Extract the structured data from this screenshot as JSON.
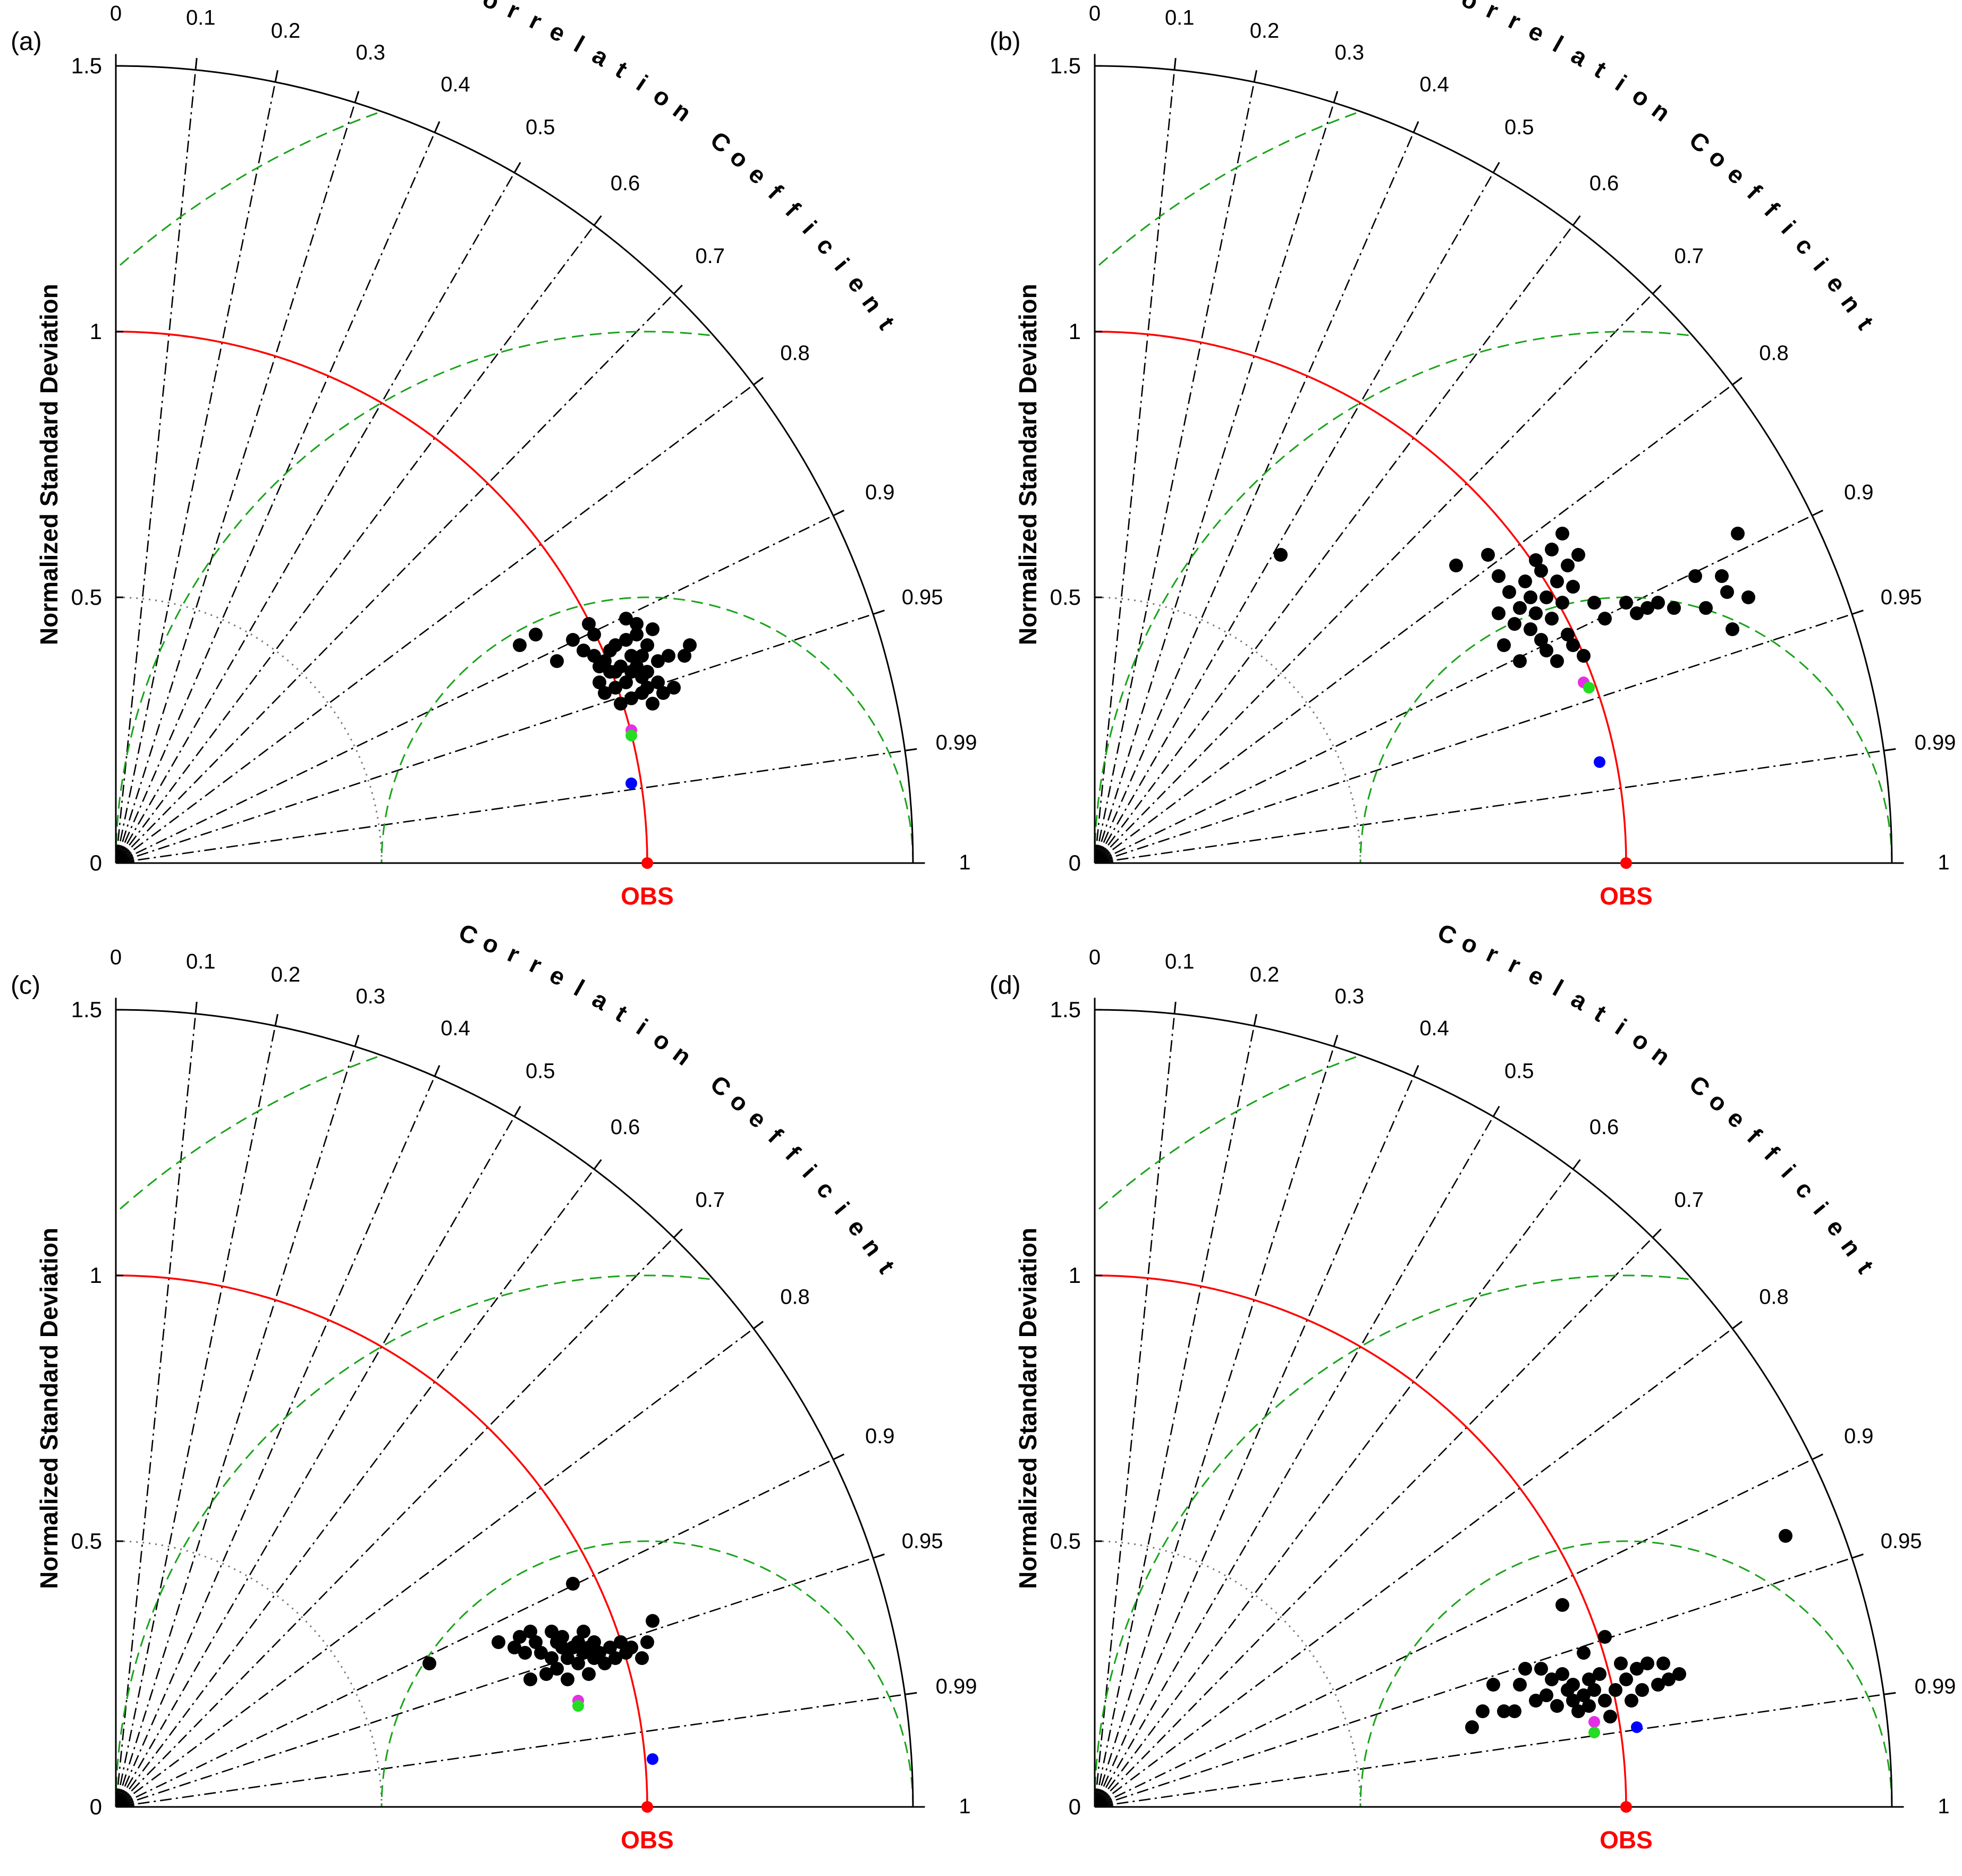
{
  "figure": {
    "colors": {
      "ref_arc": "#ff0000",
      "rms_arc": "#1aa31a",
      "std_dotted": "#777777",
      "corr_line": "#000000",
      "model_point": "#000000",
      "mme_magenta": "#e62ee6",
      "mme_green": "#22dd22",
      "mme_blue": "#0000ff",
      "obs_point": "#ff0000"
    },
    "common": {
      "ylabel": "Normalized Standard Deviation",
      "corr_title": "Correlation Coefficient",
      "obs_label": "OBS",
      "std_ticks": [
        "0",
        "0.5",
        "1",
        "1.5"
      ],
      "corr_ticks": [
        "0",
        "0.1",
        "0.2",
        "0.3",
        "0.4",
        "0.5",
        "0.6",
        "0.7",
        "0.8",
        "0.9",
        "0.95",
        "0.99",
        "1"
      ]
    }
  },
  "chart_data": [
    {
      "panel": "(a)",
      "type": "scatter",
      "subtype": "taylor-diagram",
      "xlabel": "",
      "ylabel": "Normalized Standard Deviation",
      "title": "Correlation Coefficient",
      "std_range": [
        0,
        1.5
      ],
      "corr_range": [
        0,
        1
      ],
      "ref_std": 1.0,
      "rms_contours": [
        0.5,
        1.0,
        1.5
      ],
      "models": [
        {
          "x": 0.76,
          "y": 0.41
        },
        {
          "x": 0.79,
          "y": 0.43
        },
        {
          "x": 0.83,
          "y": 0.38
        },
        {
          "x": 0.86,
          "y": 0.42
        },
        {
          "x": 0.88,
          "y": 0.4
        },
        {
          "x": 0.89,
          "y": 0.45
        },
        {
          "x": 0.9,
          "y": 0.43
        },
        {
          "x": 0.9,
          "y": 0.39
        },
        {
          "x": 0.91,
          "y": 0.37
        },
        {
          "x": 0.91,
          "y": 0.34
        },
        {
          "x": 0.92,
          "y": 0.32
        },
        {
          "x": 0.92,
          "y": 0.38
        },
        {
          "x": 0.93,
          "y": 0.4
        },
        {
          "x": 0.93,
          "y": 0.36
        },
        {
          "x": 0.94,
          "y": 0.33
        },
        {
          "x": 0.94,
          "y": 0.41
        },
        {
          "x": 0.95,
          "y": 0.37
        },
        {
          "x": 0.95,
          "y": 0.3
        },
        {
          "x": 0.96,
          "y": 0.46
        },
        {
          "x": 0.96,
          "y": 0.42
        },
        {
          "x": 0.96,
          "y": 0.34
        },
        {
          "x": 0.97,
          "y": 0.39
        },
        {
          "x": 0.97,
          "y": 0.36
        },
        {
          "x": 0.97,
          "y": 0.31
        },
        {
          "x": 0.98,
          "y": 0.45
        },
        {
          "x": 0.98,
          "y": 0.43
        },
        {
          "x": 0.98,
          "y": 0.37
        },
        {
          "x": 0.99,
          "y": 0.35
        },
        {
          "x": 0.99,
          "y": 0.32
        },
        {
          "x": 1.0,
          "y": 0.41
        },
        {
          "x": 1.0,
          "y": 0.36
        },
        {
          "x": 1.0,
          "y": 0.33
        },
        {
          "x": 1.01,
          "y": 0.3
        },
        {
          "x": 1.01,
          "y": 0.44
        },
        {
          "x": 1.02,
          "y": 0.38
        },
        {
          "x": 1.02,
          "y": 0.34
        },
        {
          "x": 1.03,
          "y": 0.32
        },
        {
          "x": 1.04,
          "y": 0.39
        },
        {
          "x": 1.05,
          "y": 0.33
        },
        {
          "x": 1.07,
          "y": 0.39
        },
        {
          "x": 1.08,
          "y": 0.41
        },
        {
          "x": 0.94,
          "y": 0.36
        },
        {
          "x": 0.99,
          "y": 0.39
        }
      ],
      "ensemble": [
        {
          "name": "magenta",
          "x": 0.97,
          "y": 0.25
        },
        {
          "name": "green",
          "x": 0.97,
          "y": 0.24
        },
        {
          "name": "blue",
          "x": 0.97,
          "y": 0.15
        }
      ],
      "obs": {
        "x": 1.0,
        "y": 0.0
      }
    },
    {
      "panel": "(b)",
      "type": "scatter",
      "subtype": "taylor-diagram",
      "xlabel": "",
      "ylabel": "Normalized Standard Deviation",
      "title": "Correlation Coefficient",
      "std_range": [
        0,
        1.5
      ],
      "corr_range": [
        0,
        1
      ],
      "ref_std": 1.0,
      "rms_contours": [
        0.5,
        1.0,
        1.5
      ],
      "models": [
        {
          "x": 0.35,
          "y": 0.58
        },
        {
          "x": 0.68,
          "y": 0.56
        },
        {
          "x": 0.74,
          "y": 0.58
        },
        {
          "x": 0.76,
          "y": 0.54
        },
        {
          "x": 0.76,
          "y": 0.47
        },
        {
          "x": 0.77,
          "y": 0.41
        },
        {
          "x": 0.78,
          "y": 0.51
        },
        {
          "x": 0.79,
          "y": 0.45
        },
        {
          "x": 0.8,
          "y": 0.48
        },
        {
          "x": 0.8,
          "y": 0.38
        },
        {
          "x": 0.81,
          "y": 0.53
        },
        {
          "x": 0.82,
          "y": 0.5
        },
        {
          "x": 0.82,
          "y": 0.44
        },
        {
          "x": 0.83,
          "y": 0.57
        },
        {
          "x": 0.83,
          "y": 0.47
        },
        {
          "x": 0.84,
          "y": 0.42
        },
        {
          "x": 0.84,
          "y": 0.55
        },
        {
          "x": 0.85,
          "y": 0.5
        },
        {
          "x": 0.85,
          "y": 0.4
        },
        {
          "x": 0.86,
          "y": 0.46
        },
        {
          "x": 0.86,
          "y": 0.59
        },
        {
          "x": 0.87,
          "y": 0.53
        },
        {
          "x": 0.87,
          "y": 0.38
        },
        {
          "x": 0.88,
          "y": 0.62
        },
        {
          "x": 0.88,
          "y": 0.49
        },
        {
          "x": 0.89,
          "y": 0.56
        },
        {
          "x": 0.89,
          "y": 0.43
        },
        {
          "x": 0.9,
          "y": 0.41
        },
        {
          "x": 0.9,
          "y": 0.52
        },
        {
          "x": 0.91,
          "y": 0.58
        },
        {
          "x": 0.92,
          "y": 0.39
        },
        {
          "x": 0.94,
          "y": 0.49
        },
        {
          "x": 0.96,
          "y": 0.46
        },
        {
          "x": 1.0,
          "y": 0.49
        },
        {
          "x": 1.02,
          "y": 0.47
        },
        {
          "x": 1.04,
          "y": 0.48
        },
        {
          "x": 1.06,
          "y": 0.49
        },
        {
          "x": 1.09,
          "y": 0.48
        },
        {
          "x": 1.13,
          "y": 0.54
        },
        {
          "x": 1.15,
          "y": 0.48
        },
        {
          "x": 1.18,
          "y": 0.54
        },
        {
          "x": 1.19,
          "y": 0.51
        },
        {
          "x": 1.2,
          "y": 0.44
        },
        {
          "x": 1.21,
          "y": 0.62
        },
        {
          "x": 1.23,
          "y": 0.5
        }
      ],
      "ensemble": [
        {
          "name": "magenta",
          "x": 0.92,
          "y": 0.34
        },
        {
          "name": "green",
          "x": 0.93,
          "y": 0.33
        },
        {
          "name": "blue",
          "x": 0.95,
          "y": 0.19
        }
      ],
      "obs": {
        "x": 1.0,
        "y": 0.0
      }
    },
    {
      "panel": "(c)",
      "type": "scatter",
      "subtype": "taylor-diagram",
      "xlabel": "",
      "ylabel": "Normalized Standard Deviation",
      "title": "Correlation Coefficient",
      "std_range": [
        0,
        1.5
      ],
      "corr_range": [
        0,
        1
      ],
      "ref_std": 1.0,
      "rms_contours": [
        0.5,
        1.0,
        1.5
      ],
      "models": [
        {
          "x": 0.59,
          "y": 0.27
        },
        {
          "x": 0.72,
          "y": 0.31
        },
        {
          "x": 0.75,
          "y": 0.3
        },
        {
          "x": 0.76,
          "y": 0.32
        },
        {
          "x": 0.77,
          "y": 0.29
        },
        {
          "x": 0.78,
          "y": 0.33
        },
        {
          "x": 0.78,
          "y": 0.24
        },
        {
          "x": 0.79,
          "y": 0.31
        },
        {
          "x": 0.8,
          "y": 0.29
        },
        {
          "x": 0.81,
          "y": 0.25
        },
        {
          "x": 0.82,
          "y": 0.33
        },
        {
          "x": 0.82,
          "y": 0.28
        },
        {
          "x": 0.83,
          "y": 0.31
        },
        {
          "x": 0.83,
          "y": 0.26
        },
        {
          "x": 0.84,
          "y": 0.3
        },
        {
          "x": 0.84,
          "y": 0.32
        },
        {
          "x": 0.85,
          "y": 0.28
        },
        {
          "x": 0.85,
          "y": 0.24
        },
        {
          "x": 0.86,
          "y": 0.3
        },
        {
          "x": 0.86,
          "y": 0.42
        },
        {
          "x": 0.87,
          "y": 0.27
        },
        {
          "x": 0.87,
          "y": 0.31
        },
        {
          "x": 0.88,
          "y": 0.29
        },
        {
          "x": 0.88,
          "y": 0.33
        },
        {
          "x": 0.89,
          "y": 0.25
        },
        {
          "x": 0.89,
          "y": 0.3
        },
        {
          "x": 0.9,
          "y": 0.28
        },
        {
          "x": 0.9,
          "y": 0.31
        },
        {
          "x": 0.91,
          "y": 0.29
        },
        {
          "x": 0.92,
          "y": 0.27
        },
        {
          "x": 0.93,
          "y": 0.3
        },
        {
          "x": 0.94,
          "y": 0.28
        },
        {
          "x": 0.95,
          "y": 0.31
        },
        {
          "x": 0.96,
          "y": 0.29
        },
        {
          "x": 0.97,
          "y": 0.3
        },
        {
          "x": 0.99,
          "y": 0.28
        },
        {
          "x": 1.0,
          "y": 0.31
        },
        {
          "x": 1.01,
          "y": 0.35
        }
      ],
      "ensemble": [
        {
          "name": "magenta",
          "x": 0.87,
          "y": 0.2
        },
        {
          "name": "green",
          "x": 0.87,
          "y": 0.19
        },
        {
          "name": "blue",
          "x": 1.01,
          "y": 0.09
        }
      ],
      "obs": {
        "x": 1.0,
        "y": 0.0
      }
    },
    {
      "panel": "(d)",
      "type": "scatter",
      "subtype": "taylor-diagram",
      "xlabel": "",
      "ylabel": "Normalized Standard Deviation",
      "title": "Correlation Coefficient",
      "std_range": [
        0,
        1.5
      ],
      "corr_range": [
        0,
        1
      ],
      "ref_std": 1.0,
      "rms_contours": [
        0.5,
        1.0,
        1.5
      ],
      "models": [
        {
          "x": 0.71,
          "y": 0.15
        },
        {
          "x": 0.73,
          "y": 0.18
        },
        {
          "x": 0.75,
          "y": 0.23
        },
        {
          "x": 0.77,
          "y": 0.18
        },
        {
          "x": 0.79,
          "y": 0.18
        },
        {
          "x": 0.8,
          "y": 0.23
        },
        {
          "x": 0.81,
          "y": 0.26
        },
        {
          "x": 0.83,
          "y": 0.2
        },
        {
          "x": 0.84,
          "y": 0.26
        },
        {
          "x": 0.85,
          "y": 0.21
        },
        {
          "x": 0.86,
          "y": 0.24
        },
        {
          "x": 0.87,
          "y": 0.19
        },
        {
          "x": 0.88,
          "y": 0.38
        },
        {
          "x": 0.88,
          "y": 0.25
        },
        {
          "x": 0.89,
          "y": 0.22
        },
        {
          "x": 0.9,
          "y": 0.2
        },
        {
          "x": 0.9,
          "y": 0.23
        },
        {
          "x": 0.91,
          "y": 0.18
        },
        {
          "x": 0.92,
          "y": 0.21
        },
        {
          "x": 0.92,
          "y": 0.29
        },
        {
          "x": 0.93,
          "y": 0.24
        },
        {
          "x": 0.93,
          "y": 0.19
        },
        {
          "x": 0.94,
          "y": 0.22
        },
        {
          "x": 0.95,
          "y": 0.25
        },
        {
          "x": 0.96,
          "y": 0.2
        },
        {
          "x": 0.96,
          "y": 0.32
        },
        {
          "x": 0.97,
          "y": 0.17
        },
        {
          "x": 0.98,
          "y": 0.22
        },
        {
          "x": 0.99,
          "y": 0.27
        },
        {
          "x": 1.0,
          "y": 0.24
        },
        {
          "x": 1.01,
          "y": 0.2
        },
        {
          "x": 1.02,
          "y": 0.26
        },
        {
          "x": 1.03,
          "y": 0.22
        },
        {
          "x": 1.04,
          "y": 0.27
        },
        {
          "x": 1.06,
          "y": 0.23
        },
        {
          "x": 1.07,
          "y": 0.27
        },
        {
          "x": 1.08,
          "y": 0.24
        },
        {
          "x": 1.1,
          "y": 0.25
        },
        {
          "x": 1.3,
          "y": 0.51
        }
      ],
      "ensemble": [
        {
          "name": "magenta",
          "x": 0.94,
          "y": 0.16
        },
        {
          "name": "green",
          "x": 0.94,
          "y": 0.14
        },
        {
          "name": "blue",
          "x": 1.02,
          "y": 0.15
        }
      ],
      "obs": {
        "x": 1.0,
        "y": 0.0
      }
    }
  ]
}
